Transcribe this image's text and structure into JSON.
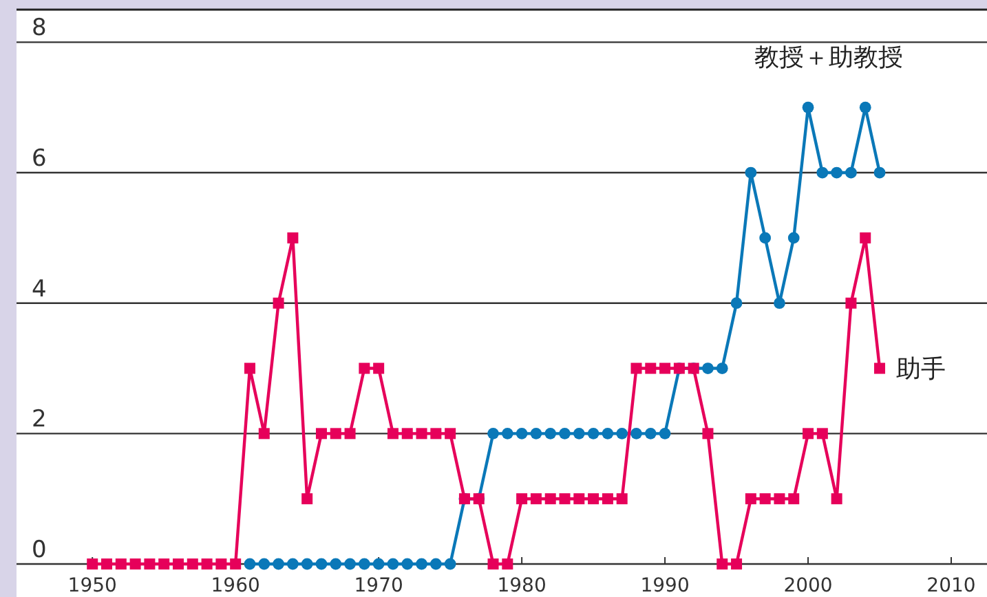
{
  "chart_data": {
    "type": "line",
    "grid": "y",
    "legend": false,
    "line_style": "solid",
    "xlim": [
      1944.7,
      2012.5
    ],
    "ylim": [
      0,
      8.5
    ],
    "xticks": [
      1950,
      1960,
      1970,
      1980,
      1990,
      2000,
      2010
    ],
    "yticks": [
      0,
      2,
      4,
      6,
      8
    ],
    "series": [
      {
        "name": "教授＋助教授",
        "color": "#0a78b8",
        "marker": "circle",
        "x": [
          1961,
          1962,
          1963,
          1964,
          1965,
          1966,
          1967,
          1968,
          1969,
          1970,
          1971,
          1972,
          1973,
          1974,
          1975,
          1976,
          1977,
          1978,
          1979,
          1980,
          1981,
          1982,
          1983,
          1984,
          1985,
          1986,
          1987,
          1988,
          1989,
          1990,
          1991,
          1992,
          1993,
          1994,
          1995,
          1996,
          1997,
          1998,
          1999,
          2000,
          2001,
          2002,
          2003,
          2004,
          2005
        ],
        "values": [
          0,
          0,
          0,
          0,
          0,
          0,
          0,
          0,
          0,
          0,
          0,
          0,
          0,
          0,
          0,
          1,
          1,
          2,
          2,
          2,
          2,
          2,
          2,
          2,
          2,
          2,
          2,
          2,
          2,
          2,
          3,
          3,
          3,
          3,
          4,
          6,
          5,
          4,
          5,
          7,
          6,
          6,
          6,
          7,
          6
        ]
      },
      {
        "name": "助手",
        "color": "#e6005a",
        "marker": "square",
        "x": [
          1950,
          1951,
          1952,
          1953,
          1954,
          1955,
          1956,
          1957,
          1958,
          1959,
          1960,
          1961,
          1962,
          1963,
          1964,
          1965,
          1966,
          1967,
          1968,
          1969,
          1970,
          1971,
          1972,
          1973,
          1974,
          1975,
          1976,
          1977,
          1978,
          1979,
          1980,
          1981,
          1982,
          1983,
          1984,
          1985,
          1986,
          1987,
          1988,
          1989,
          1990,
          1991,
          1992,
          1993,
          1994,
          1995,
          1996,
          1997,
          1998,
          1999,
          2000,
          2001,
          2002,
          2003,
          2004,
          2005
        ],
        "values": [
          0,
          0,
          0,
          0,
          0,
          0,
          0,
          0,
          0,
          0,
          0,
          3,
          2,
          4,
          5,
          1,
          2,
          2,
          2,
          3,
          3,
          2,
          2,
          2,
          2,
          2,
          1,
          1,
          0,
          0,
          1,
          1,
          1,
          1,
          1,
          1,
          1,
          1,
          3,
          3,
          3,
          3,
          3,
          2,
          0,
          0,
          1,
          1,
          1,
          1,
          2,
          2,
          1,
          4,
          5,
          3
        ]
      }
    ]
  }
}
